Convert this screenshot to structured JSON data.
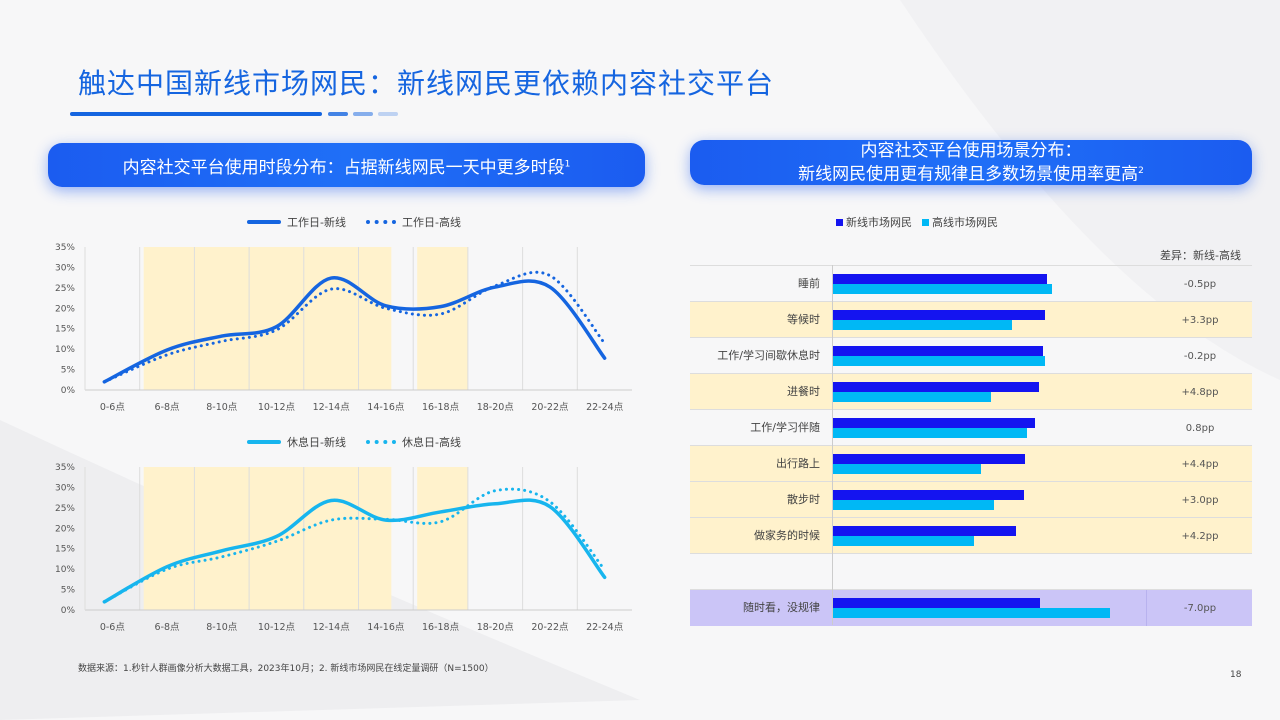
{
  "title": "触达中国新线市场网民：新线网民更依赖内容社交平台",
  "left_header": {
    "text": "内容社交平台使用时段分布：占据新线网民一天中更多时段",
    "note": "1"
  },
  "right_header": {
    "line1": "内容社交平台使用场景分布：",
    "line2": "新线网民使用更有规律且多数场景使用率更高",
    "note": "2"
  },
  "footnote": "数据来源：1.秒针人群画像分析大数据工具，2023年10月；2. 新线市场网民在线定量调研（N=1500）",
  "page_number": "18",
  "colors": {
    "workday": "#1565e0",
    "restday": "#17b5ee",
    "new_market": "#1414f0",
    "high_market": "#00b8f5",
    "highlight": "#fff2cc",
    "special_row": "#cbc5f7"
  },
  "chart_data": [
    {
      "type": "line",
      "categories": [
        "0-6点",
        "6-8点",
        "8-10点",
        "10-12点",
        "12-14点",
        "14-16点",
        "16-18点",
        "18-20点",
        "20-22点",
        "22-24点"
      ],
      "yticks": [
        "0%",
        "5%",
        "10%",
        "15%",
        "20%",
        "25%",
        "30%",
        "35%"
      ],
      "ylim": [
        0,
        35
      ],
      "grid": "vertical",
      "legend": "top",
      "highlight_bands": [
        [
          "6-8点",
          "14-16点"
        ],
        [
          "16-18点",
          "16-18点"
        ]
      ],
      "series": [
        {
          "name": "工作日-新线",
          "style": "solid",
          "values": [
            2,
            9.8,
            13.2,
            15.5,
            27.4,
            20.6,
            20.4,
            25.2,
            25.2,
            7.8
          ]
        },
        {
          "name": "工作日-高线",
          "style": "dotted",
          "values": [
            2,
            8.6,
            11.9,
            14.7,
            24.7,
            20,
            18.6,
            25.5,
            28,
            11.4
          ]
        }
      ]
    },
    {
      "type": "line",
      "categories": [
        "0-6点",
        "6-8点",
        "8-10点",
        "10-12点",
        "12-14点",
        "14-16点",
        "16-18点",
        "18-20点",
        "20-22点",
        "22-24点"
      ],
      "yticks": [
        "0%",
        "5%",
        "10%",
        "15%",
        "20%",
        "25%",
        "30%",
        "35%"
      ],
      "ylim": [
        0,
        35
      ],
      "grid": "vertical",
      "legend": "top",
      "highlight_bands": [
        [
          "6-8点",
          "14-16点"
        ],
        [
          "16-18点",
          "16-18点"
        ]
      ],
      "series": [
        {
          "name": "休息日-新线",
          "style": "solid",
          "values": [
            2,
            10.6,
            14.5,
            18,
            26.8,
            22,
            24,
            26,
            25.3,
            8
          ]
        },
        {
          "name": "休息日-高线",
          "style": "dotted",
          "values": [
            2,
            10,
            13,
            16.8,
            22,
            22.2,
            21.6,
            29.2,
            26.5,
            9.8
          ]
        }
      ]
    },
    {
      "type": "bar",
      "orientation": "horizontal",
      "legend": "top",
      "diff_header": "差异：新线-高线",
      "series_names": [
        "新线市场网民",
        "高线市场网民"
      ],
      "rows": [
        {
          "label": "睡前",
          "new": 21.5,
          "high": 22.0,
          "diff": "-0.5pp",
          "highlight": false
        },
        {
          "label": "等候时",
          "new": 21.3,
          "high": 18.0,
          "diff": "+3.3pp",
          "highlight": true
        },
        {
          "label": "工作/学习间歇休息时",
          "new": 21.1,
          "high": 21.3,
          "diff": "-0.2pp",
          "highlight": false
        },
        {
          "label": "进餐时",
          "new": 20.7,
          "high": 15.9,
          "diff": "+4.8pp",
          "highlight": true
        },
        {
          "label": "工作/学习伴随",
          "new": 20.3,
          "high": 19.5,
          "diff": "0.8pp",
          "highlight": false
        },
        {
          "label": "出行路上",
          "new": 19.3,
          "high": 14.9,
          "diff": "+4.4pp",
          "highlight": true
        },
        {
          "label": "散步时",
          "new": 19.2,
          "high": 16.2,
          "diff": "+3.0pp",
          "highlight": true
        },
        {
          "label": "做家务的时候",
          "new": 18.4,
          "high": 14.2,
          "diff": "+4.2pp",
          "highlight": true
        },
        {
          "label": "",
          "new": null,
          "high": null,
          "diff": "",
          "highlight": false
        },
        {
          "label": "随时看，没规律",
          "new": 20.8,
          "high": 27.8,
          "diff": "-7.0pp",
          "highlight": "special"
        }
      ]
    }
  ]
}
